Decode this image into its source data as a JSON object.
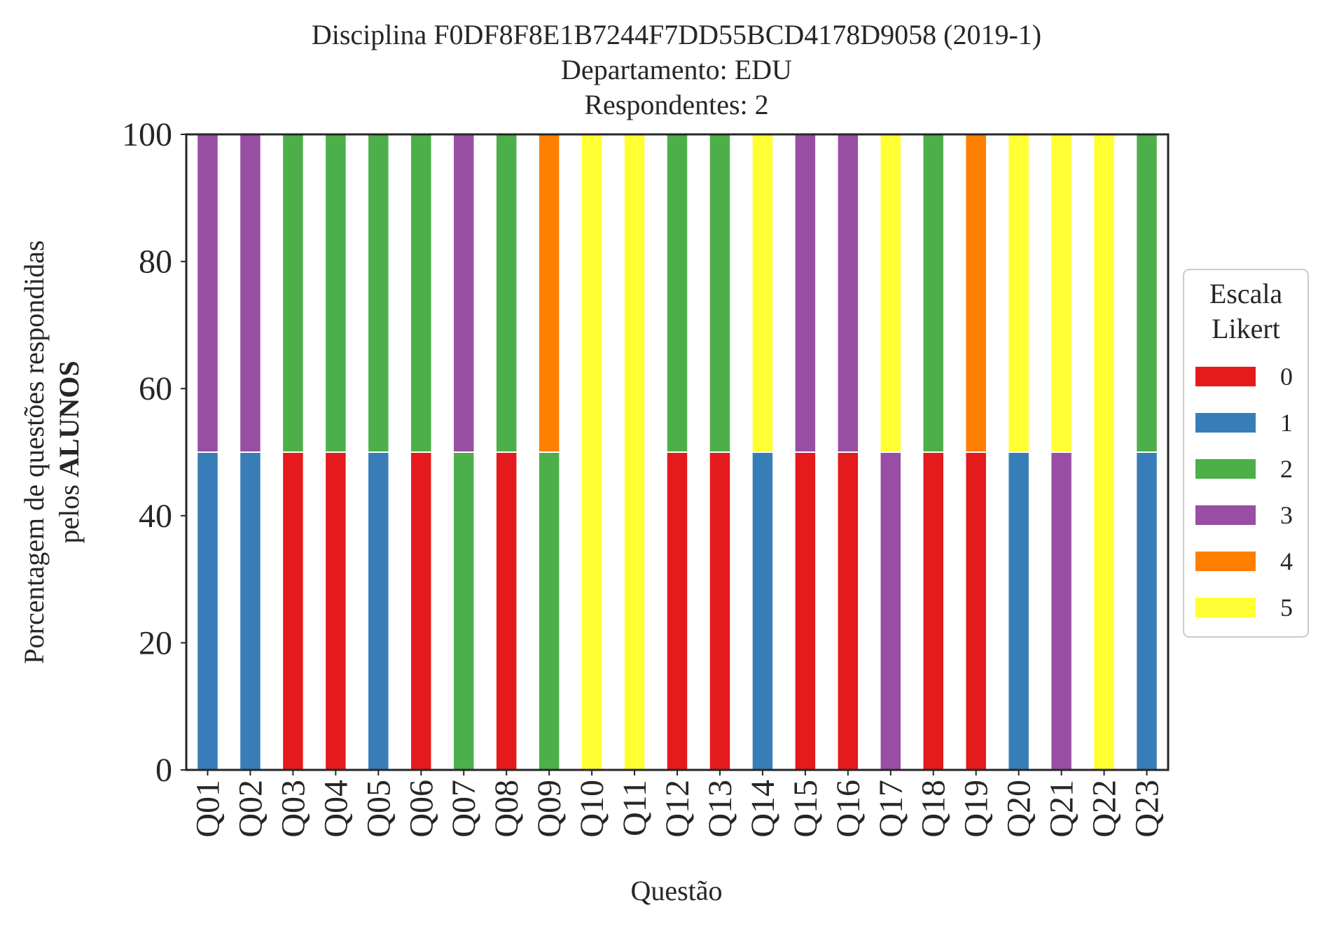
{
  "chart_data": {
    "type": "bar",
    "stacked": true,
    "title_lines": [
      "Disciplina F0DF8F8E1B7244F7DD55BCD4178D9058 (2019-1)",
      "Departamento: EDU",
      "Respondentes: 2"
    ],
    "xlabel": "Questão",
    "ylabel_line1": "Porcentagem de questões respondidas",
    "ylabel_line2_prefix": "pelos ",
    "ylabel_line2_bold": "ALUNOS",
    "ylim": [
      0,
      100
    ],
    "yticks": [
      0,
      20,
      40,
      60,
      80,
      100
    ],
    "grid": false,
    "legend_title_lines": [
      "Escala",
      "Likert"
    ],
    "legend_position": "center-right outside",
    "categories": [
      "Q01",
      "Q02",
      "Q03",
      "Q04",
      "Q05",
      "Q06",
      "Q07",
      "Q08",
      "Q09",
      "Q10",
      "Q11",
      "Q12",
      "Q13",
      "Q14",
      "Q15",
      "Q16",
      "Q17",
      "Q18",
      "Q19",
      "Q20",
      "Q21",
      "Q22",
      "Q23"
    ],
    "series": [
      {
        "name": "0",
        "color": "#e41a1c",
        "values": [
          0,
          0,
          50,
          50,
          0,
          50,
          0,
          50,
          0,
          0,
          0,
          50,
          50,
          0,
          50,
          50,
          0,
          50,
          50,
          0,
          0,
          0,
          0
        ]
      },
      {
        "name": "1",
        "color": "#377eb8",
        "values": [
          50,
          50,
          0,
          0,
          50,
          0,
          0,
          0,
          0,
          0,
          0,
          0,
          0,
          50,
          0,
          0,
          0,
          0,
          0,
          50,
          0,
          0,
          50
        ]
      },
      {
        "name": "2",
        "color": "#4daf4a",
        "values": [
          0,
          0,
          50,
          50,
          50,
          50,
          50,
          50,
          50,
          0,
          0,
          50,
          50,
          0,
          0,
          0,
          0,
          50,
          0,
          0,
          0,
          0,
          50
        ]
      },
      {
        "name": "3",
        "color": "#984ea3",
        "values": [
          50,
          50,
          0,
          0,
          0,
          0,
          50,
          0,
          0,
          0,
          0,
          0,
          0,
          0,
          50,
          50,
          50,
          0,
          0,
          0,
          50,
          0,
          0
        ]
      },
      {
        "name": "4",
        "color": "#ff7f00",
        "values": [
          0,
          0,
          0,
          0,
          0,
          0,
          0,
          0,
          50,
          0,
          0,
          0,
          0,
          0,
          0,
          0,
          0,
          0,
          50,
          0,
          0,
          0,
          0
        ]
      },
      {
        "name": "5",
        "color": "#ffff33",
        "values": [
          0,
          0,
          0,
          0,
          0,
          0,
          0,
          0,
          0,
          100,
          100,
          0,
          0,
          50,
          0,
          0,
          50,
          0,
          0,
          50,
          50,
          100,
          0
        ]
      }
    ]
  }
}
